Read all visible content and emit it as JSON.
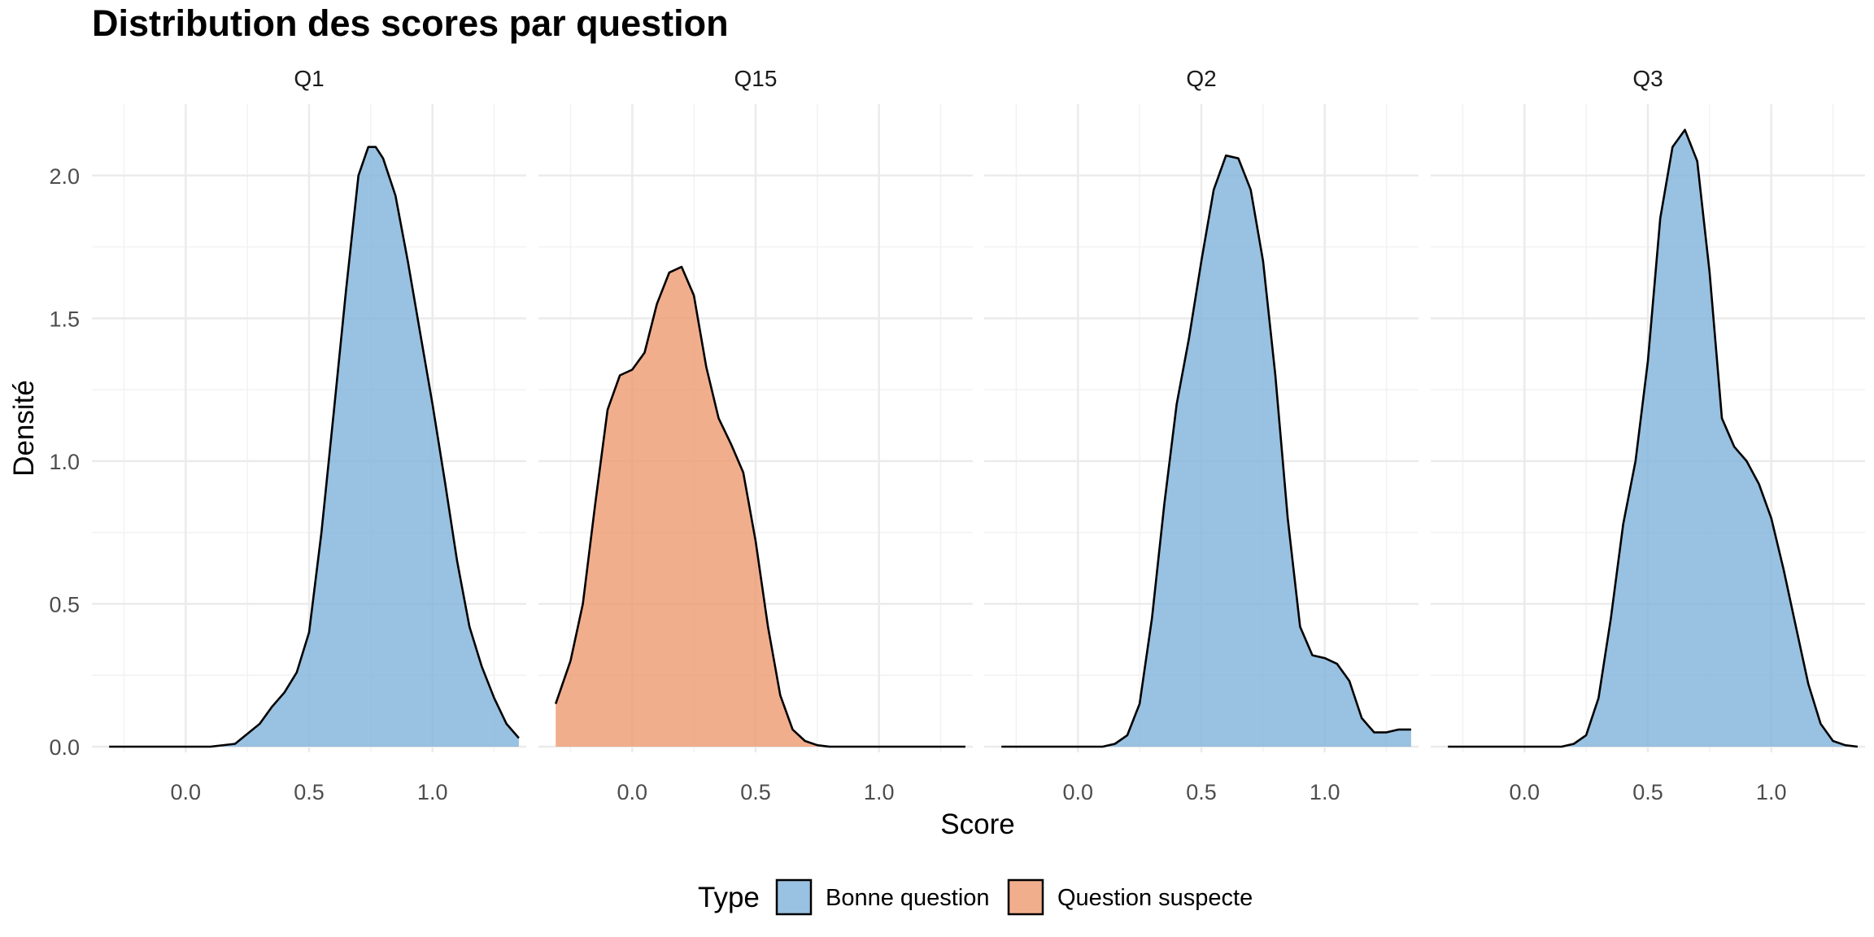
{
  "chart_data": {
    "type": "area",
    "title": "Distribution des scores par question",
    "xlabel": "Score",
    "ylabel": "Densité",
    "xlim": [
      -0.38,
      1.38
    ],
    "ylim": [
      -0.02,
      2.25
    ],
    "x_ticks": [
      0.0,
      0.5,
      1.0
    ],
    "x_tick_labels": [
      "0.0",
      "0.5",
      "1.0"
    ],
    "y_ticks": [
      0.0,
      0.5,
      1.0,
      1.5,
      2.0
    ],
    "y_tick_labels": [
      "0.0",
      "0.5",
      "1.0",
      "1.5",
      "2.0"
    ],
    "grid": true,
    "legend": {
      "title": "Type",
      "position": "bottom",
      "entries": [
        {
          "label": "Bonne question",
          "color": "#80b1d9"
        },
        {
          "label": "Question suspecte",
          "color": "#ee9a70"
        }
      ]
    },
    "panels": [
      {
        "label": "Q1",
        "type": "Bonne question",
        "x": [
          -0.31,
          0.0,
          0.1,
          0.2,
          0.3,
          0.35,
          0.4,
          0.45,
          0.5,
          0.55,
          0.6,
          0.65,
          0.7,
          0.74,
          0.77,
          0.8,
          0.85,
          0.9,
          0.95,
          1.0,
          1.05,
          1.1,
          1.15,
          1.2,
          1.25,
          1.3,
          1.35
        ],
        "y": [
          0.0,
          0.0,
          0.0,
          0.01,
          0.08,
          0.14,
          0.19,
          0.26,
          0.4,
          0.75,
          1.17,
          1.6,
          2.0,
          2.1,
          2.1,
          2.06,
          1.93,
          1.7,
          1.45,
          1.2,
          0.93,
          0.65,
          0.42,
          0.28,
          0.17,
          0.08,
          0.03
        ]
      },
      {
        "label": "Q15",
        "type": "Question suspecte",
        "x": [
          -0.31,
          -0.25,
          -0.2,
          -0.15,
          -0.1,
          -0.05,
          0.0,
          0.05,
          0.1,
          0.15,
          0.2,
          0.25,
          0.3,
          0.35,
          0.4,
          0.45,
          0.5,
          0.55,
          0.6,
          0.65,
          0.7,
          0.75,
          0.8,
          0.9,
          1.0,
          1.1,
          1.2,
          1.35
        ],
        "y": [
          0.15,
          0.3,
          0.5,
          0.85,
          1.18,
          1.3,
          1.32,
          1.38,
          1.55,
          1.66,
          1.68,
          1.58,
          1.33,
          1.15,
          1.06,
          0.96,
          0.72,
          0.42,
          0.18,
          0.06,
          0.02,
          0.005,
          0.0,
          0.0,
          0.0,
          0.0,
          0.0,
          0.0
        ]
      },
      {
        "label": "Q2",
        "type": "Bonne question",
        "x": [
          -0.31,
          0.0,
          0.1,
          0.15,
          0.2,
          0.25,
          0.3,
          0.35,
          0.4,
          0.45,
          0.5,
          0.55,
          0.6,
          0.65,
          0.7,
          0.75,
          0.8,
          0.85,
          0.9,
          0.95,
          1.0,
          1.05,
          1.1,
          1.15,
          1.2,
          1.25,
          1.3,
          1.35
        ],
        "y": [
          0.0,
          0.0,
          0.0,
          0.01,
          0.04,
          0.15,
          0.45,
          0.85,
          1.2,
          1.43,
          1.7,
          1.95,
          2.07,
          2.06,
          1.95,
          1.7,
          1.3,
          0.8,
          0.42,
          0.32,
          0.31,
          0.29,
          0.23,
          0.1,
          0.05,
          0.05,
          0.06,
          0.06
        ]
      },
      {
        "label": "Q3",
        "type": "Bonne question",
        "x": [
          -0.31,
          0.0,
          0.15,
          0.2,
          0.25,
          0.3,
          0.35,
          0.4,
          0.45,
          0.5,
          0.55,
          0.6,
          0.65,
          0.7,
          0.75,
          0.8,
          0.85,
          0.9,
          0.95,
          1.0,
          1.05,
          1.1,
          1.15,
          1.2,
          1.25,
          1.3,
          1.35
        ],
        "y": [
          0.0,
          0.0,
          0.0,
          0.01,
          0.04,
          0.17,
          0.45,
          0.78,
          1.0,
          1.35,
          1.85,
          2.1,
          2.16,
          2.05,
          1.66,
          1.15,
          1.05,
          1.0,
          0.92,
          0.8,
          0.62,
          0.42,
          0.22,
          0.08,
          0.02,
          0.005,
          0.0
        ]
      }
    ]
  }
}
